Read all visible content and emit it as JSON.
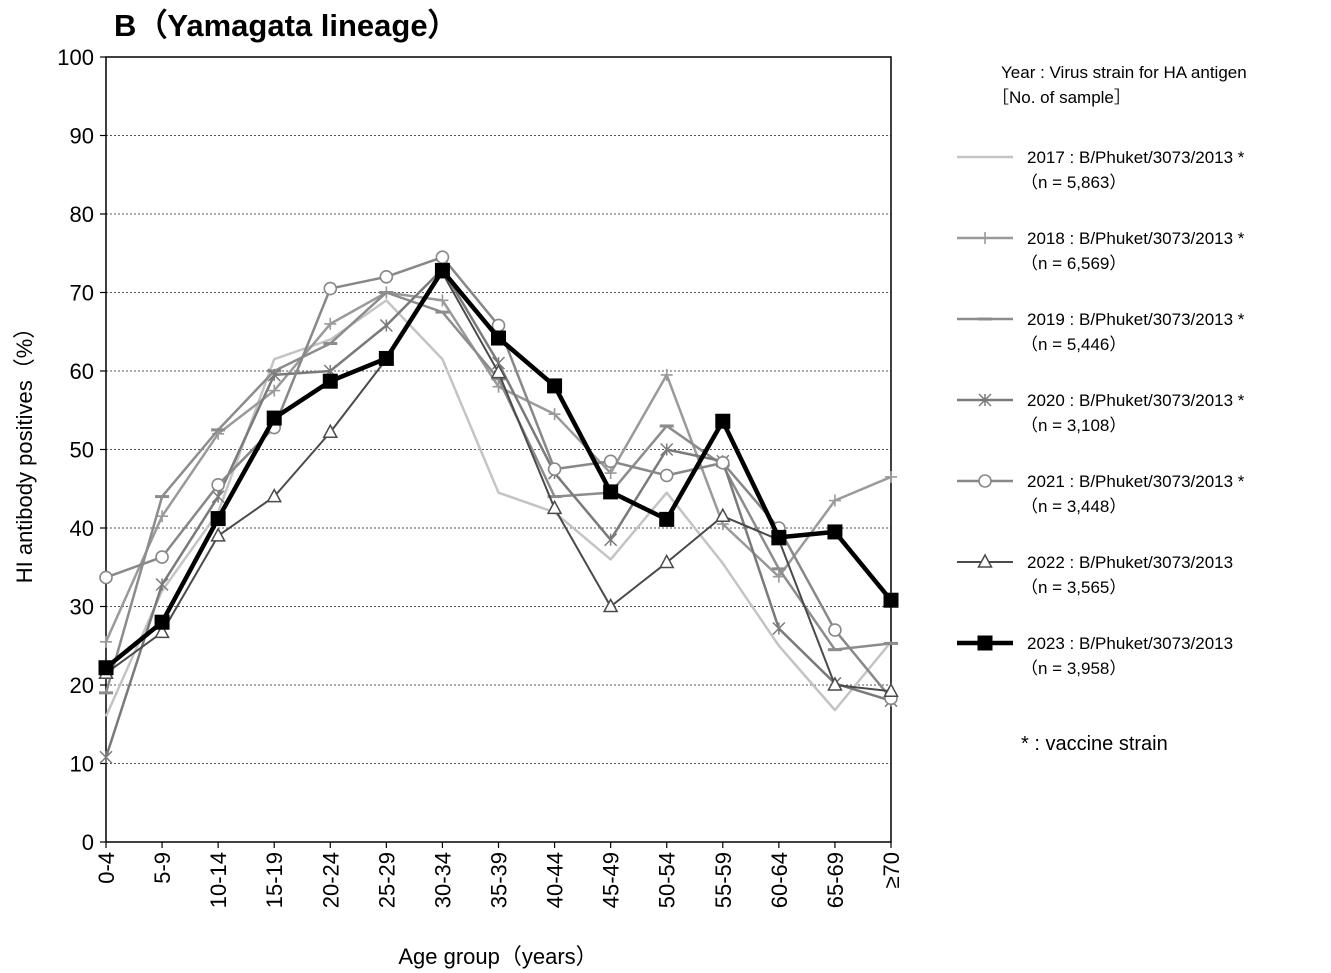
{
  "chart_data": {
    "type": "line",
    "title": "B（Yamagata lineage）",
    "xlabel": "Age group（years）",
    "ylabel": "HI antibody positives（%）",
    "ylim": [
      0,
      100
    ],
    "yticks": [
      "0",
      "10",
      "20",
      "30",
      "40",
      "50",
      "60",
      "70",
      "80",
      "90",
      "100"
    ],
    "categories": [
      "0-4",
      "5-9",
      "10-14",
      "15-19",
      "20-24",
      "25-29",
      "30-34",
      "35-39",
      "40-44",
      "45-49",
      "50-54",
      "55-59",
      "60-64",
      "65-69",
      "≥70"
    ],
    "grid": "horizontal dotted",
    "legend": {
      "placement": "right",
      "header_line1": "Year : Virus strain for HA antigen",
      "header_line2": "［No. of sample］",
      "footnote": "* : vaccine strain"
    },
    "series": [
      {
        "name": "2017 : B/Phuket/3073/2013 *",
        "n_label": "（n = 5,863）",
        "color": "#c4c4c4",
        "marker": "none",
        "width": 2.5,
        "values": [
          16,
          32,
          42,
          61.5,
          64,
          69,
          61.5,
          44.5,
          42,
          36,
          44.5,
          35.5,
          25,
          16.8,
          25.5
        ]
      },
      {
        "name": "2018 : B/Phuket/3073/2013 *",
        "n_label": "（n = 6,569）",
        "color": "#9a9a9a",
        "marker": "plus",
        "width": 2.5,
        "values": [
          25.5,
          41.5,
          52,
          57.5,
          66,
          70,
          69,
          58,
          54.5,
          47,
          59.5,
          40.5,
          33.8,
          43.5,
          46.5
        ]
      },
      {
        "name": "2019 : B/Phuket/3073/2013 *",
        "n_label": "（n = 5,446）",
        "color": "#8c8c8c",
        "marker": "dash",
        "width": 2.5,
        "values": [
          19,
          44,
          52.5,
          60,
          63.5,
          70,
          67.5,
          59,
          44,
          44.5,
          53,
          48,
          34.8,
          24.5,
          25.3
        ]
      },
      {
        "name": "2020 : B/Phuket/3073/2013 *",
        "n_label": "（n = 3,108）",
        "color": "#7a7a7a",
        "marker": "star",
        "width": 2.5,
        "values": [
          10.8,
          32.8,
          44,
          59.5,
          60,
          65.8,
          73,
          61,
          47,
          38.5,
          50,
          48.5,
          27.2,
          20.2,
          18
        ]
      },
      {
        "name": "2021 : B/Phuket/3073/2013 *",
        "n_label": "（n = 3,448）",
        "color": "#888888",
        "marker": "circle",
        "width": 2.5,
        "values": [
          33.7,
          36.3,
          45.5,
          52.8,
          70.5,
          72,
          74.5,
          65.8,
          47.5,
          48.5,
          46.7,
          48.3,
          40,
          27,
          18.3
        ]
      },
      {
        "name": "2022 : B/Phuket/3073/2013",
        "n_label": "（n = 3,565）",
        "color": "#4a4a4a",
        "marker": "triangle",
        "width": 2,
        "values": [
          21.5,
          26.7,
          39,
          44,
          52.2,
          61.5,
          72.5,
          59.8,
          42.5,
          30,
          35.6,
          41.5,
          38.5,
          20,
          19.2
        ]
      },
      {
        "name": "2023 : B/Phuket/3073/2013",
        "n_label": "（n = 3,958）",
        "color": "#000000",
        "marker": "square",
        "width": 4.5,
        "values": [
          22.2,
          28,
          41.2,
          54,
          58.7,
          61.6,
          72.8,
          64.2,
          58.1,
          44.6,
          41.1,
          53.6,
          38.8,
          39.5,
          30.8
        ]
      }
    ]
  }
}
